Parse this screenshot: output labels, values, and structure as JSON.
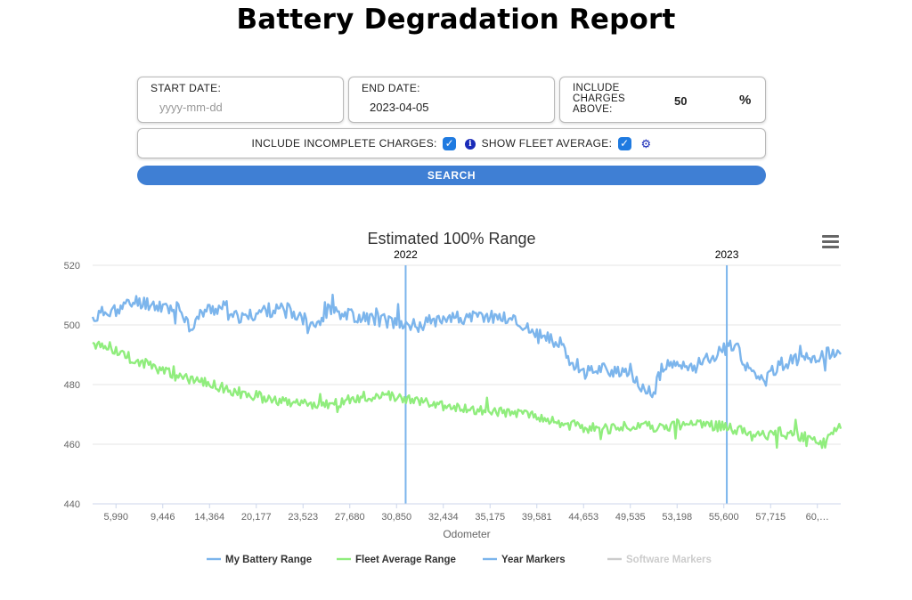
{
  "page": {
    "title": "Battery Degradation Report"
  },
  "filters": {
    "start_date": {
      "label": "START DATE:",
      "placeholder": "yyyy-mm-dd",
      "value": ""
    },
    "end_date": {
      "label": "END DATE:",
      "value": "2023-04-05"
    },
    "charges_above": {
      "label_lines": [
        "INCLUDE",
        "CHARGES",
        "ABOVE:"
      ],
      "value": "50",
      "unit": "%"
    },
    "include_incomplete": {
      "label": "INCLUDE INCOMPLETE CHARGES:",
      "checked": true,
      "icon": "info-icon"
    },
    "show_fleet_average": {
      "label": "SHOW FLEET AVERAGE:",
      "checked": true,
      "icon": "gear-icon"
    },
    "search_label": "SEARCH"
  },
  "chart_data": {
    "type": "line",
    "title": "Estimated 100% Range",
    "xlabel": "Odometer",
    "ylabel": "",
    "ylim": [
      440,
      520
    ],
    "yticks": [
      "440",
      "460",
      "480",
      "500",
      "520"
    ],
    "x_tick_labels": [
      "5,990",
      "9,446",
      "14,364",
      "20,177",
      "23,523",
      "27,680",
      "30,850",
      "32,434",
      "35,175",
      "39,581",
      "44,653",
      "49,535",
      "53,198",
      "55,600",
      "57,715",
      "60,…"
    ],
    "grid": true,
    "legend_position": "bottom",
    "year_markers": [
      {
        "label": "2022",
        "position": 0.4184
      },
      {
        "label": "2023",
        "position": 0.8477
      }
    ],
    "series": [
      {
        "name": "My Battery Range",
        "color": "#7cb5ec",
        "anchors": [
          [
            0,
            502
          ],
          [
            0.02,
            505
          ],
          [
            0.04,
            506
          ],
          [
            0.06,
            508
          ],
          [
            0.08,
            507
          ],
          [
            0.1,
            506
          ],
          [
            0.12,
            505
          ],
          [
            0.13,
            499
          ],
          [
            0.15,
            505
          ],
          [
            0.18,
            506
          ],
          [
            0.2,
            502
          ],
          [
            0.23,
            505
          ],
          [
            0.26,
            505
          ],
          [
            0.28,
            502
          ],
          [
            0.3,
            501
          ],
          [
            0.32,
            505
          ],
          [
            0.35,
            503
          ],
          [
            0.38,
            502
          ],
          [
            0.4,
            501
          ],
          [
            0.42,
            500
          ],
          [
            0.44,
            500
          ],
          [
            0.47,
            503
          ],
          [
            0.5,
            502
          ],
          [
            0.53,
            503
          ],
          [
            0.56,
            502
          ],
          [
            0.58,
            499
          ],
          [
            0.6,
            496
          ],
          [
            0.62,
            494
          ],
          [
            0.64,
            488
          ],
          [
            0.66,
            484
          ],
          [
            0.68,
            486
          ],
          [
            0.7,
            484
          ],
          [
            0.72,
            482
          ],
          [
            0.74,
            478
          ],
          [
            0.75,
            477
          ],
          [
            0.76,
            485
          ],
          [
            0.78,
            487
          ],
          [
            0.8,
            485
          ],
          [
            0.82,
            489
          ],
          [
            0.84,
            491
          ],
          [
            0.86,
            494
          ],
          [
            0.87,
            487
          ],
          [
            0.89,
            483
          ],
          [
            0.9,
            482
          ],
          [
            0.92,
            487
          ],
          [
            0.94,
            488
          ],
          [
            0.96,
            489
          ],
          [
            0.98,
            490
          ],
          [
            1,
            491
          ]
        ],
        "noise": 2.4
      },
      {
        "name": "Fleet Average Range",
        "color": "#90ed7d",
        "anchors": [
          [
            0,
            494
          ],
          [
            0.02,
            493
          ],
          [
            0.04,
            490
          ],
          [
            0.06,
            488
          ],
          [
            0.08,
            486
          ],
          [
            0.1,
            484
          ],
          [
            0.12,
            482
          ],
          [
            0.14,
            481
          ],
          [
            0.16,
            480
          ],
          [
            0.2,
            477
          ],
          [
            0.24,
            475
          ],
          [
            0.28,
            474
          ],
          [
            0.32,
            473
          ],
          [
            0.36,
            476
          ],
          [
            0.4,
            476
          ],
          [
            0.42,
            475
          ],
          [
            0.44,
            474
          ],
          [
            0.48,
            472
          ],
          [
            0.52,
            471
          ],
          [
            0.56,
            471
          ],
          [
            0.6,
            469
          ],
          [
            0.62,
            467
          ],
          [
            0.65,
            466
          ],
          [
            0.68,
            465
          ],
          [
            0.72,
            466
          ],
          [
            0.76,
            466
          ],
          [
            0.8,
            467
          ],
          [
            0.84,
            466
          ],
          [
            0.86,
            465
          ],
          [
            0.88,
            463
          ],
          [
            0.9,
            463
          ],
          [
            0.92,
            464
          ],
          [
            0.94,
            463
          ],
          [
            0.96,
            462
          ],
          [
            0.98,
            461
          ],
          [
            1,
            466
          ]
        ],
        "noise": 1.8
      }
    ],
    "legend": [
      {
        "name": "My Battery Range",
        "color": "#7cb5ec",
        "active": true
      },
      {
        "name": "Fleet Average Range",
        "color": "#90ed7d",
        "active": true
      },
      {
        "name": "Year Markers",
        "color": "#7cb5ec",
        "active": true
      },
      {
        "name": "Software Markers",
        "color": "#cccccc",
        "active": false
      }
    ]
  }
}
